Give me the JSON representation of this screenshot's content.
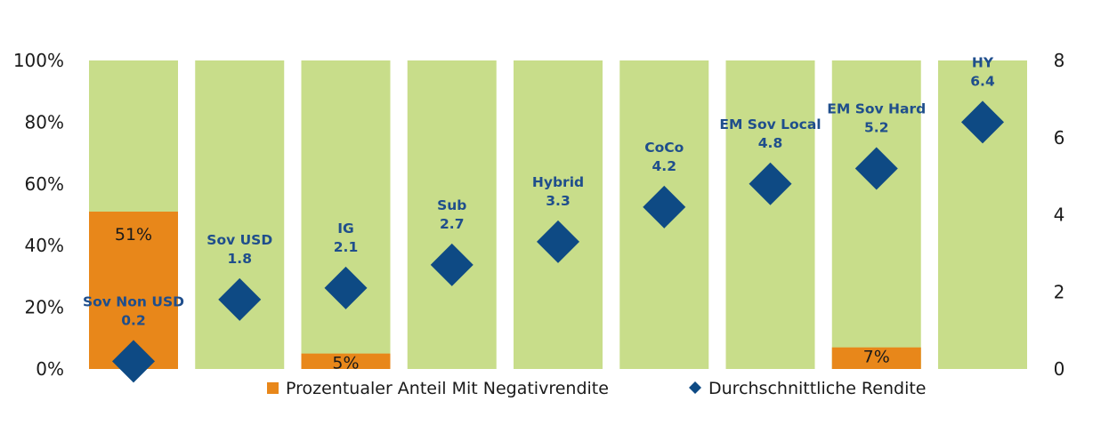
{
  "chart_data": {
    "type": "bar",
    "categories": [
      "Sov Non USD",
      "Sov USD",
      "IG",
      "Sub",
      "Hybrid",
      "CoCo",
      "EM Sov Local",
      "EM Sov Hard",
      "HY"
    ],
    "series": [
      {
        "name": "Prozentualer Anteil Mit Negativrendite",
        "type": "bar",
        "axis": "left",
        "values": [
          51,
          0,
          5,
          0,
          0,
          0,
          0,
          7,
          0
        ],
        "labels": [
          "51%",
          "",
          "5%",
          "",
          "",
          "",
          "",
          "7%",
          ""
        ],
        "color": "#e8871a"
      },
      {
        "name": "Durchschnittliche Rendite",
        "type": "scatter",
        "axis": "right",
        "values": [
          0.2,
          1.8,
          2.1,
          2.7,
          3.3,
          4.2,
          4.8,
          5.2,
          6.4
        ],
        "labels": [
          "0.2",
          "1.8",
          "2.1",
          "2.7",
          "3.3",
          "4.2",
          "4.8",
          "5.2",
          "6.4"
        ],
        "color": "#0e4a84"
      }
    ],
    "background_color": "#c8dd8a",
    "y_left": {
      "ticks": [
        "0%",
        "20%",
        "40%",
        "60%",
        "80%",
        "100%"
      ],
      "range": [
        0,
        100
      ]
    },
    "y_right": {
      "ticks": [
        "0",
        "2",
        "4",
        "6",
        "8"
      ],
      "range": [
        0,
        8
      ]
    },
    "legend": {
      "position": "bottom",
      "items": [
        {
          "label": "Prozentualer Anteil Mit Negativrendite",
          "marker": "square",
          "color": "#e8871a"
        },
        {
          "label": "Durchschnittliche Rendite",
          "marker": "diamond",
          "color": "#0e4a84"
        }
      ]
    },
    "grid": false
  }
}
